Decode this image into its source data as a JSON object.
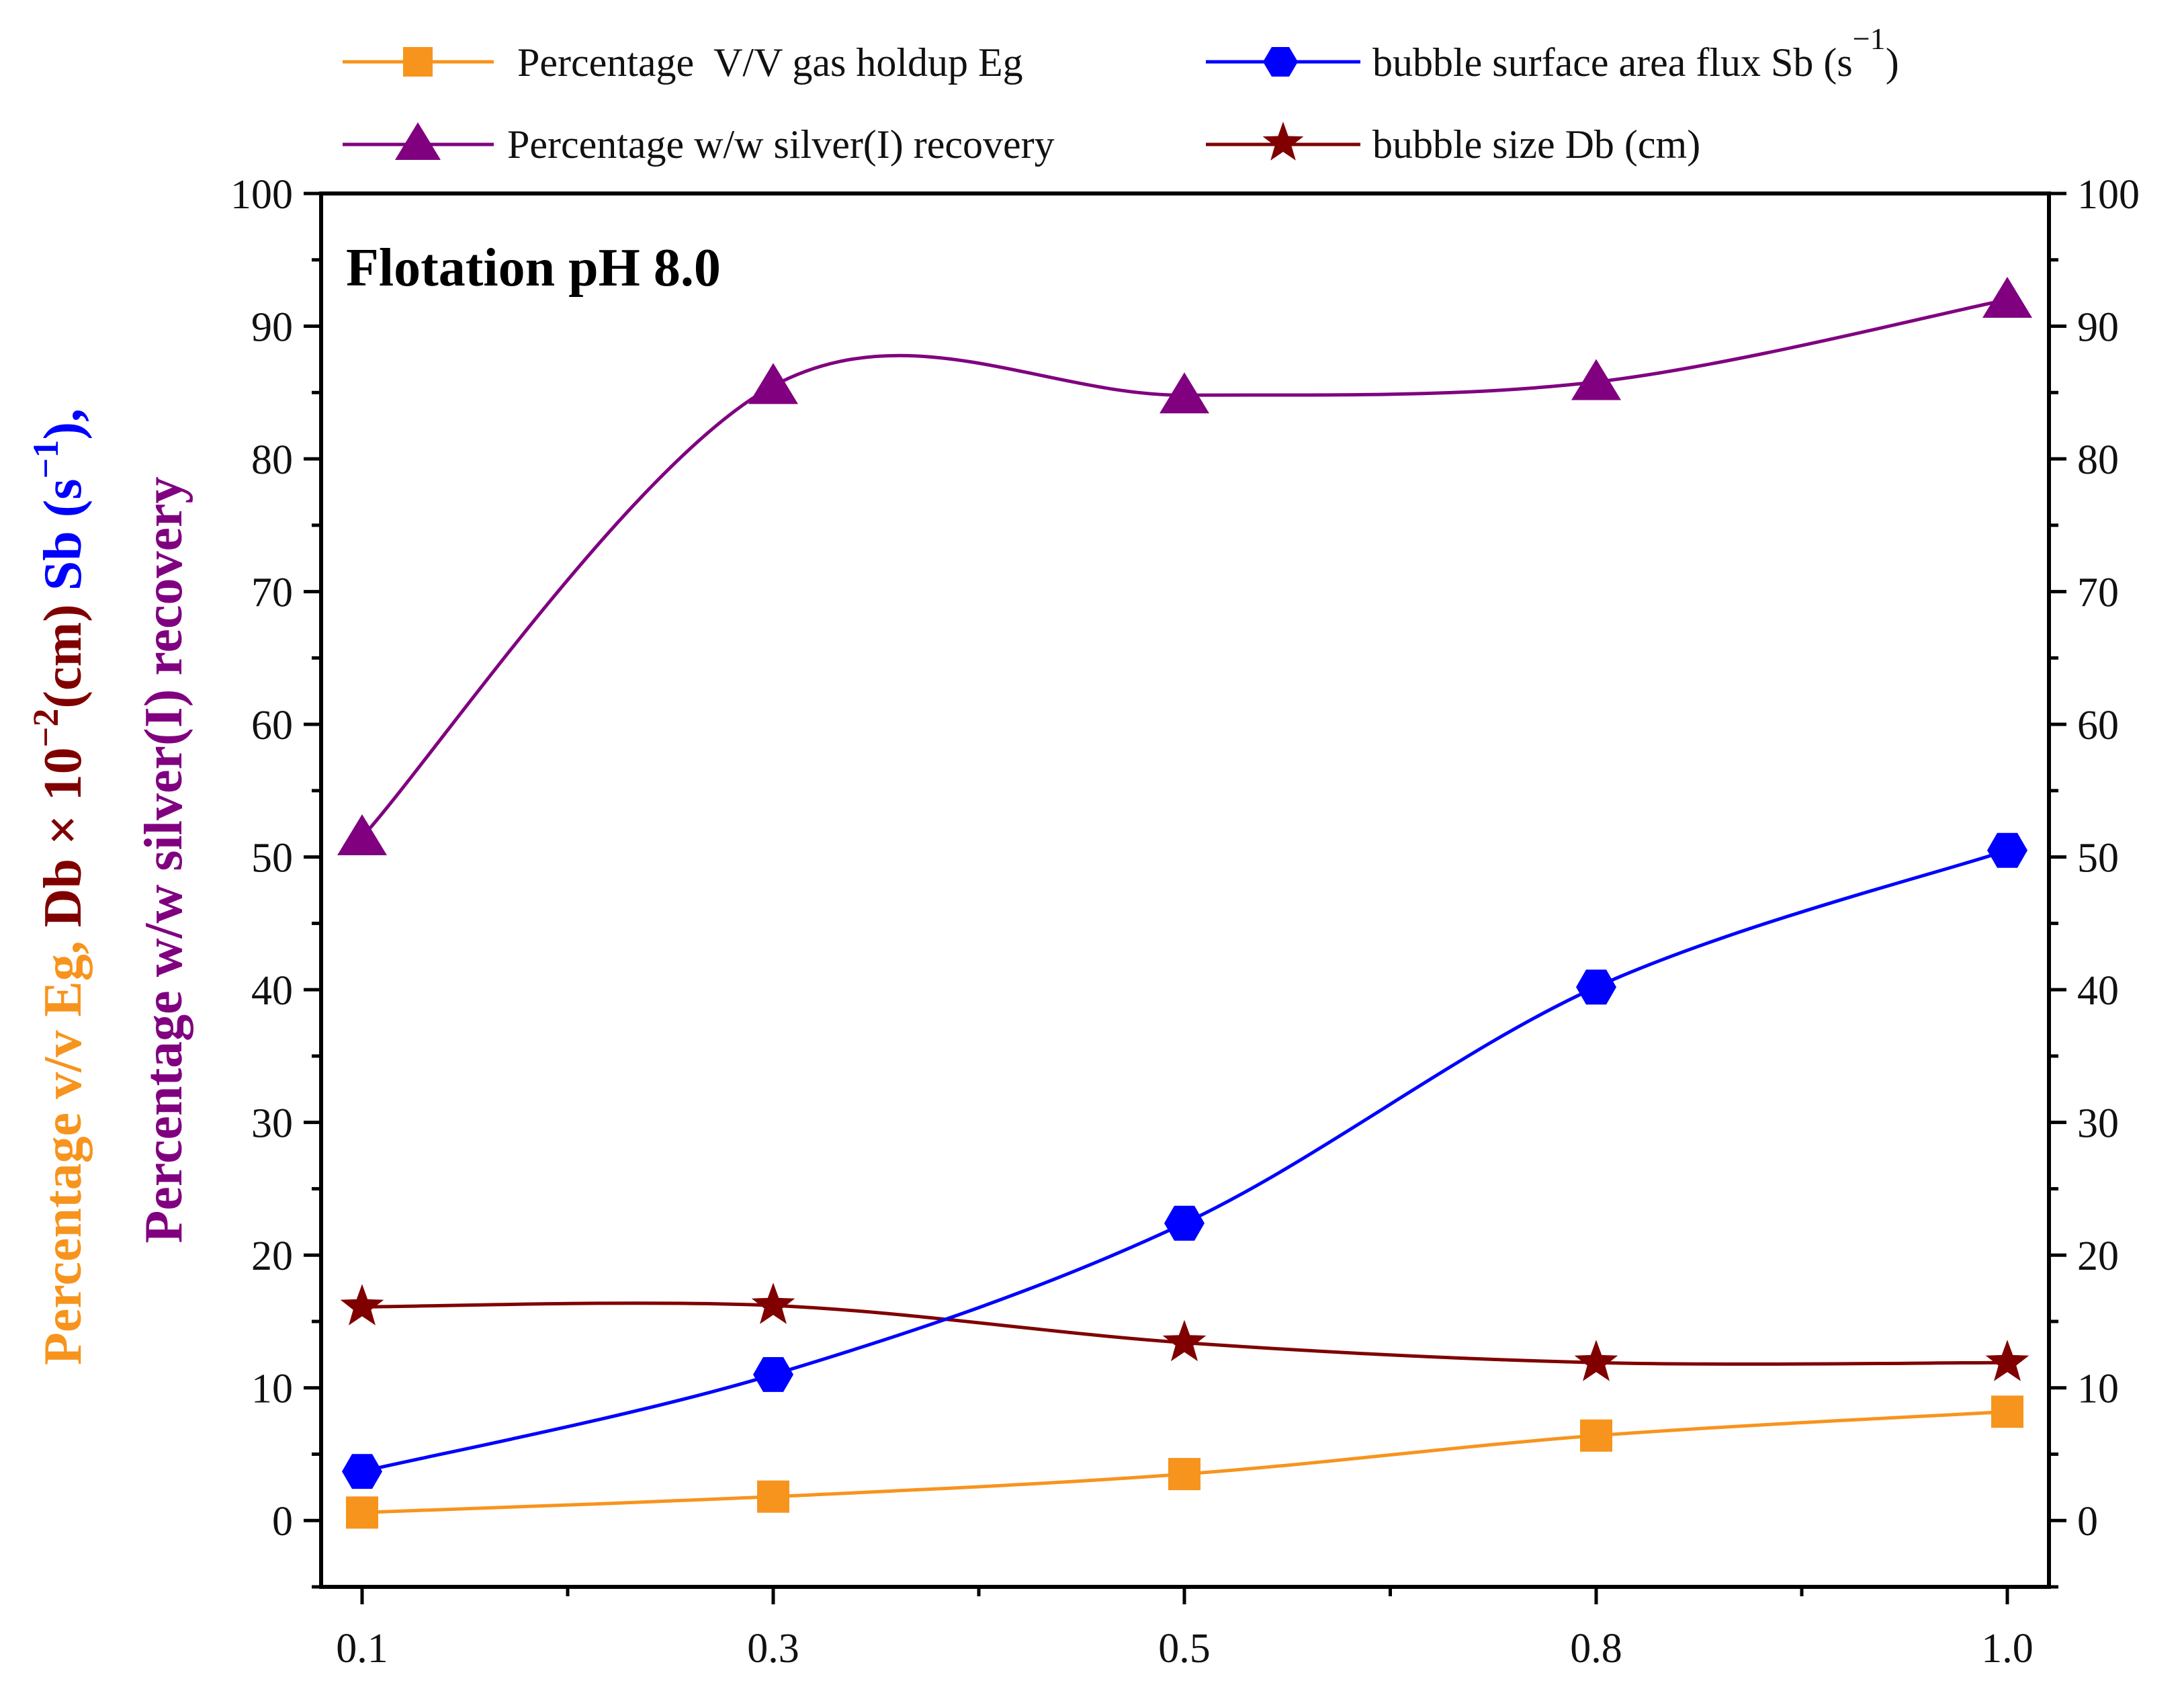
{
  "chart_data": {
    "type": "line",
    "annotation": "Flotation pH 8.0",
    "categories": [
      "0.1",
      "0.3",
      "0.5",
      "0.8",
      "1.0"
    ],
    "ylim": [
      -5,
      100
    ],
    "yticks": [
      0,
      10,
      20,
      30,
      40,
      50,
      60,
      70,
      80,
      90,
      100
    ],
    "grid": false,
    "legend_position": "top",
    "ylabel_line1": {
      "part1": "Percentage v/v Eg, ",
      "part2": "Db × 10",
      "part2_exp": "−2",
      "part3": "(cm) ",
      "part4": "Sb (s",
      "part4_exp": "−1",
      "part5": "),",
      "colors": {
        "part1": "#f7941d",
        "part2": "#800000",
        "part4": "#0000ff"
      }
    },
    "ylabel_line2": {
      "text": "Percentage w/w silver(I) recovery",
      "color": "#800080"
    },
    "series": [
      {
        "key": "eg",
        "name": "Percentage  V/V gas holdup Eg",
        "color": "#f7941d",
        "marker": "square",
        "values": [
          0.6,
          1.8,
          3.5,
          6.4,
          8.2
        ]
      },
      {
        "key": "recovery",
        "name": "Percentage w/w silver(I) recovery",
        "color": "#800080",
        "marker": "triangle",
        "values": [
          51.5,
          85.5,
          84.8,
          85.8,
          92.0
        ]
      },
      {
        "key": "sb",
        "name": "bubble surface area flux Sb (s",
        "name_sup": "−1",
        "name_tail": ")",
        "color": "#0000ff",
        "marker": "hexagon",
        "values": [
          3.7,
          11.0,
          22.4,
          40.2,
          50.5
        ]
      },
      {
        "key": "db",
        "name": "bubble size Db (cm)",
        "color": "#800000",
        "marker": "star",
        "values": [
          16.1,
          16.2,
          13.4,
          11.9,
          11.9
        ]
      }
    ]
  }
}
